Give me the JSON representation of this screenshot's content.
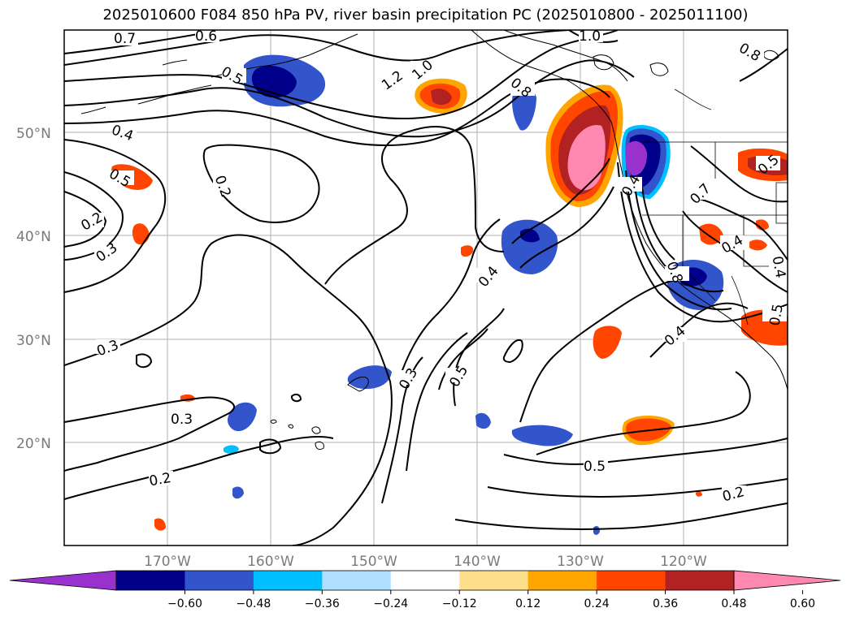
{
  "title": "2025010600 F084 850 hPa PV, river basin precipitation PC (2025010800 - 2025011100)",
  "latitude_labels": [
    "50°N",
    "40°N",
    "30°N",
    "20°N"
  ],
  "longitude_labels": [
    "170°W",
    "160°W",
    "150°W",
    "140°W",
    "130°W",
    "120°W"
  ],
  "colorbar": {
    "tick_labels": [
      "−0.60",
      "−0.48",
      "−0.36",
      "−0.24",
      "−0.12",
      "0.12",
      "0.24",
      "0.36",
      "0.48",
      "0.60"
    ],
    "colors": [
      "#9932cc",
      "#00008b",
      "#3355cc",
      "#00bfff",
      "#b0e0ff",
      "#ffffff",
      "#ffe08a",
      "#ffa500",
      "#ff4500",
      "#b22222",
      "#ff88b0"
    ]
  },
  "contour_labels": [
    "0.7",
    "0.6",
    "1.0",
    "1.2",
    "1.0",
    "0.8",
    "0.8",
    "0.5",
    "0.4",
    "0.2",
    "0.2",
    "0.3",
    "0.5",
    "0.4",
    "0.7",
    "0.8",
    "0.3",
    "0.5",
    "0.4",
    "0.3",
    "0.3",
    "0.5",
    "0.4",
    "0.2",
    "0.2",
    "0.5",
    "0.5",
    "0.4",
    "0.4"
  ]
}
